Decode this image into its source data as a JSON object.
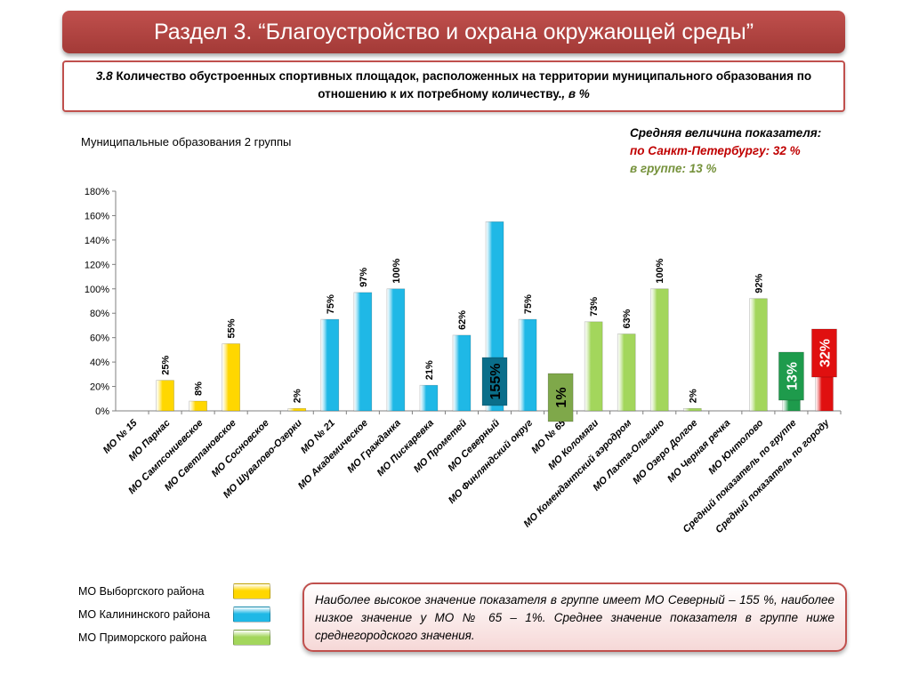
{
  "header": {
    "title": "Раздел 3. “Благоустройство и охрана окружающей среды”"
  },
  "subtitle": {
    "number": "3.8",
    "text": "Количество обустроенных спортивных площадок, расположенных на территории муниципального образования по отношению к их потребному количеству.",
    "unit": ", в %"
  },
  "group_label": "Муниципальные образования 2 группы",
  "averages": {
    "title": "Средняя величина показателя:",
    "city": "по Санкт-Петербургу:  32 %",
    "group": "в группе:  13 %"
  },
  "legend": [
    {
      "label": "МО Выборгского района",
      "color": "#ffd700"
    },
    {
      "label": "МО Калининского района",
      "color": "#1fb8e6"
    },
    {
      "label": "МО Приморского района",
      "color": "#a3d65c"
    }
  ],
  "note": "Наиболее высокое значение показателя в группе имеет МО Северный – 155 %, наиболее низкое значение у МО № 65 – 1%. Среднее значение показателя в группе ниже среднегородского значения.",
  "colors": {
    "yellow": "#ffd700",
    "blue": "#1fb8e6",
    "green": "#a3d65c",
    "dark_green": "#1e9b4c",
    "red": "#e01010"
  },
  "chart_data": {
    "type": "bar",
    "ylim": [
      0,
      180
    ],
    "yticks": [
      "0%",
      "20%",
      "40%",
      "60%",
      "80%",
      "100%",
      "120%",
      "140%",
      "160%",
      "180%"
    ],
    "grid": false,
    "categories": [
      "МО № 15",
      "МО Парнас",
      "МО Сампсониевское",
      "МО Светлановское",
      "МО Сосновское",
      "МО Шувалово-Озерки",
      "МО № 21",
      "МО Академическое",
      "МО Гражданка",
      "МО Пискаревка",
      "МО Прометей",
      "МО Северный",
      "МО Финляндский округ",
      "МО № 65",
      "МО Коломяги",
      "МО Комендантский аэродром",
      "МО Лахта-Ольгино",
      "МО Озеро Долгое",
      "МО Черная речка",
      "МО Юнтолово",
      "Средний показатель по группе",
      "Средний показатель по городу"
    ],
    "values": [
      0,
      25,
      8,
      55,
      0,
      2,
      75,
      97,
      100,
      21,
      62,
      155,
      75,
      1,
      73,
      63,
      100,
      2,
      0,
      92,
      13,
      32
    ],
    "labels": [
      "",
      "25%",
      "8%",
      "55%",
      "",
      "2%",
      "75%",
      "97%",
      "100%",
      "21%",
      "62%",
      "155%",
      "75%",
      "1%",
      "73%",
      "63%",
      "100%",
      "2%",
      "",
      "92%",
      "13%",
      "32%"
    ],
    "groups": [
      "yellow",
      "yellow",
      "yellow",
      "yellow",
      "yellow",
      "yellow",
      "blue",
      "blue",
      "blue",
      "blue",
      "blue",
      "blue",
      "blue",
      "green",
      "green",
      "green",
      "green",
      "green",
      "green",
      "green",
      "dark_green",
      "red"
    ],
    "highlighted": [
      11,
      13,
      20,
      21
    ]
  }
}
